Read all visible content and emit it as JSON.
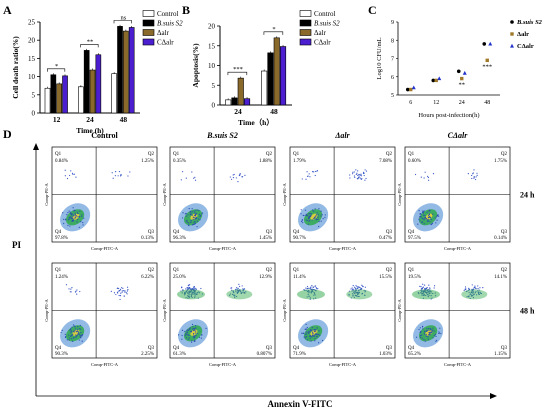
{
  "panels": {
    "a": "A",
    "b": "B",
    "c": "C",
    "d": "D"
  },
  "chart_data": [
    {
      "id": "A",
      "type": "bar",
      "ylabel": "Cell death ratio(%)",
      "xlabel": "Time (h)",
      "categories": [
        "12",
        "24",
        "48"
      ],
      "ylim": [
        0,
        25
      ],
      "yticks": [
        "0",
        "5",
        "10",
        "15",
        "20",
        "25"
      ],
      "series": [
        {
          "name": "Control",
          "color": "#ffffff",
          "values": [
            6.8,
            7.2,
            10.8
          ]
        },
        {
          "name": "B.suis S2",
          "color": "#000000",
          "values": [
            10.5,
            17.2,
            23.8
          ]
        },
        {
          "name": "Δalr",
          "color": "#8a6a2a",
          "values": [
            8.0,
            11.8,
            22.5
          ]
        },
        {
          "name": "CΔalr",
          "color": "#4b1fd0",
          "values": [
            10.2,
            16.0,
            23.5
          ]
        }
      ],
      "significance": [
        {
          "label": "*",
          "category": "12"
        },
        {
          "label": "**",
          "category": "24"
        },
        {
          "label": "ns",
          "category": "48"
        }
      ]
    },
    {
      "id": "B",
      "type": "bar",
      "ylabel": "Apoptosis(%)",
      "xlabel": "Time（h）",
      "categories": [
        "24",
        "48"
      ],
      "ylim": [
        0,
        20
      ],
      "yticks": [
        "0",
        "5",
        "10",
        "15",
        "20"
      ],
      "series": [
        {
          "name": "Control",
          "color": "#ffffff",
          "values": [
            1.3,
            8.6
          ]
        },
        {
          "name": "B.suis S2",
          "color": "#000000",
          "values": [
            1.8,
            13.2
          ]
        },
        {
          "name": "Δalr",
          "color": "#8a6a2a",
          "values": [
            6.8,
            17.0
          ]
        },
        {
          "name": "CΔalr",
          "color": "#4b1fd0",
          "values": [
            1.6,
            14.8
          ]
        }
      ],
      "significance": [
        {
          "label": "***",
          "category": "24"
        },
        {
          "label": "*",
          "category": "48"
        }
      ]
    },
    {
      "id": "C",
      "type": "scatter",
      "ylabel": "Log10 CFU/mL",
      "xlabel": "Hours post-infection(h)",
      "x": [
        "6",
        "12",
        "24",
        "48"
      ],
      "ylim": [
        5,
        9
      ],
      "yticks": [
        "5",
        "6",
        "7",
        "8",
        "9"
      ],
      "series": [
        {
          "name": "B.suis S2",
          "color": "#000000",
          "marker": "circle",
          "values": [
            5.3,
            5.8,
            6.3,
            7.8
          ]
        },
        {
          "name": "Δalr",
          "color": "#a07a2a",
          "marker": "square",
          "values": [
            5.3,
            5.8,
            5.9,
            6.9
          ]
        },
        {
          "name": "CΔalr",
          "color": "#2233cc",
          "marker": "triangle",
          "values": [
            5.4,
            5.9,
            6.2,
            7.8
          ]
        }
      ],
      "significance": [
        {
          "label": "**",
          "x": "24"
        },
        {
          "label": "***",
          "x": "48"
        }
      ]
    },
    {
      "id": "D",
      "type": "scatter",
      "ylabel": "PI",
      "xlabel": "Annexin V-FITC",
      "columns": [
        "Control",
        "B.suis S2",
        "Δalr",
        "CΔalr"
      ],
      "rows": [
        "24 h",
        "48 h"
      ],
      "axis_label_x": "Comp-FITC-A",
      "axis_label_y": "Comp-PE-A",
      "quadrants": [
        [
          {
            "Q1": "0.84%",
            "Q2": "1.25%",
            "Q3": "0.13%",
            "Q4": "97.8%"
          },
          {
            "Q1": "0.35%",
            "Q2": "1.88%",
            "Q3": "1.45%",
            "Q4": "96.3%"
          },
          {
            "Q1": "1.79%",
            "Q2": "7.08%",
            "Q3": "0.47%",
            "Q4": "90.7%"
          },
          {
            "Q1": "0.60%",
            "Q2": "1.75%",
            "Q3": "0.14%",
            "Q4": "97.5%"
          }
        ],
        [
          {
            "Q1": "1.24%",
            "Q2": "6.22%",
            "Q3": "2.25%",
            "Q4": "90.3%"
          },
          {
            "Q1": "25.0%",
            "Q2": "12.9%",
            "Q3": "0.807%",
            "Q4": "61.3%"
          },
          {
            "Q1": "11.4%",
            "Q2": "15.5%",
            "Q3": "1.03%",
            "Q4": "71.9%"
          },
          {
            "Q1": "19.5%",
            "Q2": "14.1%",
            "Q3": "1.15%",
            "Q4": "65.2%"
          }
        ]
      ]
    }
  ]
}
